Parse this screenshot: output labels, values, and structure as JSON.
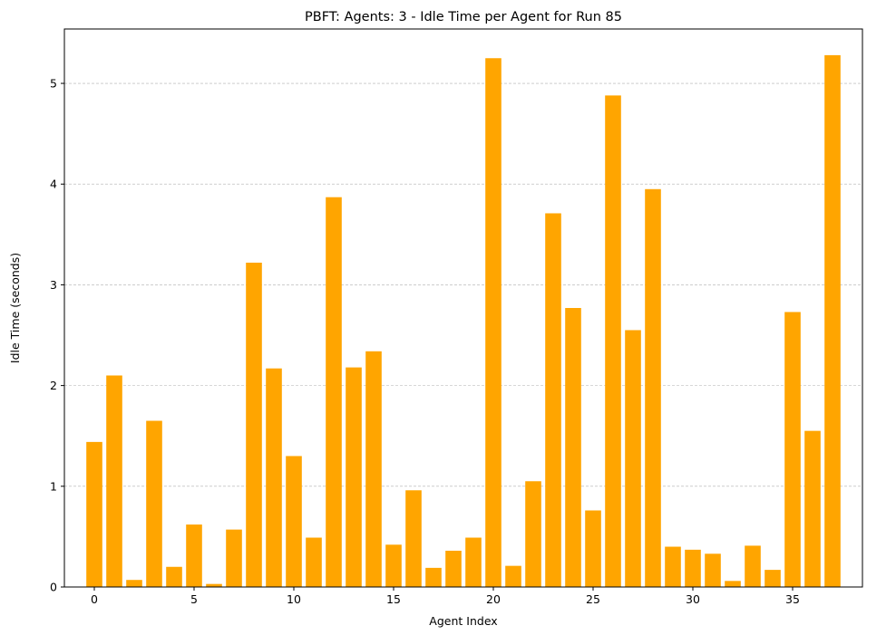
{
  "chart_data": {
    "type": "bar",
    "title": "PBFT: Agents: 3 - Idle Time per Agent for Run 85",
    "xlabel": "Agent Index",
    "ylabel": "Idle Time (seconds)",
    "x": [
      0,
      1,
      2,
      3,
      4,
      5,
      6,
      7,
      8,
      9,
      10,
      11,
      12,
      13,
      14,
      15,
      16,
      17,
      18,
      19,
      20,
      21,
      22,
      23,
      24,
      25,
      26,
      27,
      28,
      29,
      30,
      31,
      32,
      33,
      34,
      35,
      36,
      37
    ],
    "values": [
      1.44,
      2.1,
      0.07,
      1.65,
      0.2,
      0.62,
      0.03,
      0.57,
      3.22,
      2.17,
      1.3,
      0.49,
      3.87,
      2.18,
      2.34,
      0.42,
      0.96,
      0.19,
      0.36,
      0.49,
      5.25,
      0.21,
      1.05,
      3.71,
      2.77,
      0.76,
      4.88,
      2.55,
      3.95,
      0.4,
      0.37,
      0.33,
      0.06,
      0.41,
      0.17,
      2.73,
      1.55,
      5.28
    ],
    "xlim": [
      -1.5,
      38.5
    ],
    "ylim": [
      0,
      5.54
    ],
    "xticks": [
      0,
      5,
      10,
      15,
      20,
      25,
      30,
      35
    ],
    "yticks": [
      0,
      1,
      2,
      3,
      4,
      5
    ],
    "bar_color": "#ffa500",
    "grid": "y-dashed",
    "legend": "none"
  }
}
